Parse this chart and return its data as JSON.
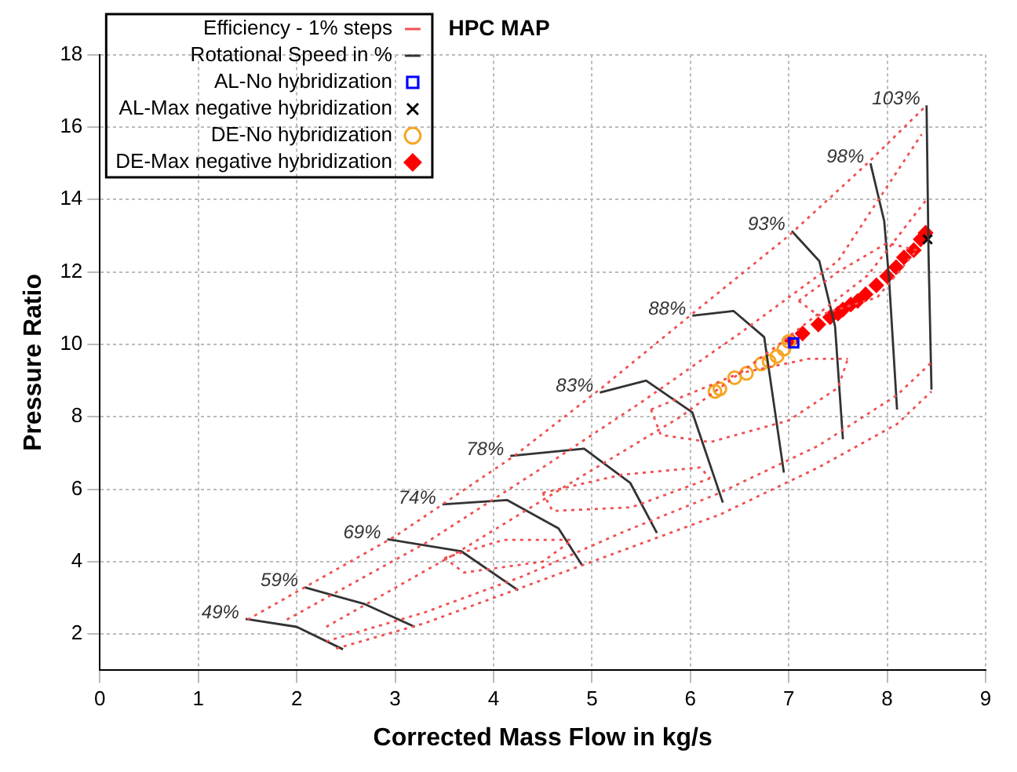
{
  "chart_data": {
    "type": "scatter",
    "title": "HPC MAP",
    "xlabel": "Corrected Mass Flow in kg/s",
    "ylabel": "Pressure Ratio",
    "xlim": [
      0,
      9
    ],
    "ylim": [
      1,
      18
    ],
    "xticks": [
      0,
      1,
      2,
      3,
      4,
      5,
      6,
      7,
      8,
      9
    ],
    "yticks": [
      2,
      4,
      6,
      8,
      10,
      12,
      14,
      16,
      18
    ],
    "grid": true,
    "legend": "top left",
    "series": [
      {
        "name": "Efficiency - 1% steps",
        "type": "line",
        "color": "#f05050",
        "line_style": "dotted",
        "marker": "none",
        "x": [
          1.5,
          3,
          4.2,
          5.1,
          6,
          7,
          7.8,
          8.4
        ],
        "values": [
          2.4,
          4.7,
          6.9,
          8.8,
          10.8,
          13,
          15,
          16.6
        ]
      },
      {
        "type": "line",
        "color": "#f05050",
        "line_style": "dotted",
        "marker": "none",
        "x": [
          1.9,
          3.3,
          4.5,
          5.5,
          6.5,
          7.5,
          8.35
        ],
        "values": [
          2.4,
          4.5,
          6.6,
          8.4,
          10.3,
          12.3,
          15.8
        ]
      },
      {
        "type": "line",
        "color": "#f05050",
        "line_style": "dotted",
        "marker": "none",
        "x": [
          2.3,
          3.6,
          4.8,
          5.9,
          6.9,
          7.8,
          8.4
        ],
        "values": [
          2.2,
          4.2,
          6.2,
          8,
          10,
          11.9,
          14
        ]
      },
      {
        "type": "line",
        "color": "#f05050",
        "line_style": "dotted",
        "marker": "none",
        "x": [
          2.4,
          3.3,
          4.3,
          5.3,
          6.3,
          7.3,
          8.1,
          8.45
        ],
        "values": [
          1.6,
          2.3,
          3.3,
          4.3,
          5.3,
          6.6,
          7.8,
          8.7
        ]
      },
      {
        "type": "line",
        "color": "#f05050",
        "line_style": "dotted",
        "marker": "none",
        "x": [
          2.3,
          3.3,
          4.3,
          5.3,
          6.3,
          7.3,
          8.1,
          8.45
        ],
        "values": [
          1.8,
          2.6,
          3.6,
          4.8,
          5.9,
          7.2,
          8.6,
          9.5
        ]
      },
      {
        "type": "line",
        "color": "#f05050",
        "line_style": "dotted",
        "marker": "none",
        "x": [
          5.6,
          6.5,
          7.2,
          7.6
        ],
        "values": [
          8.2,
          9.2,
          9.6,
          9.6
        ]
      },
      {
        "type": "line",
        "color": "#f05050",
        "line_style": "dotted",
        "marker": "none",
        "x": [
          5.6,
          5.7,
          6.2,
          7,
          7.5,
          7.6
        ],
        "values": [
          8.2,
          7.5,
          7.3,
          7.9,
          8.8,
          9.6
        ]
      },
      {
        "type": "line",
        "color": "#f05050",
        "line_style": "dotted",
        "marker": "none",
        "x": [
          4.5,
          5.3,
          6.1,
          6.2
        ],
        "values": [
          5.9,
          6.4,
          6.6,
          6.3
        ]
      },
      {
        "type": "line",
        "color": "#f05050",
        "line_style": "dotted",
        "marker": "none",
        "x": [
          4.5,
          4.6,
          5.4,
          6.2
        ],
        "values": [
          5.9,
          5.4,
          5.5,
          6.3
        ]
      },
      {
        "type": "line",
        "color": "#f05050",
        "line_style": "dotted",
        "marker": "none",
        "x": [
          3.5,
          4.1,
          4.8
        ],
        "values": [
          4.1,
          4.6,
          4.6
        ]
      },
      {
        "type": "line",
        "color": "#f05050",
        "line_style": "dotted",
        "marker": "none",
        "x": [
          3.5,
          3.7,
          4.5,
          4.8
        ],
        "values": [
          4.1,
          3.7,
          4,
          4.6
        ]
      },
      {
        "type": "line",
        "color": "#f05050",
        "line_style": "dotted",
        "marker": "none",
        "x": [
          7.1,
          7.5,
          8,
          8.3
        ],
        "values": [
          11.2,
          12,
          12.8,
          12.6
        ]
      },
      {
        "type": "line",
        "color": "#f05050",
        "line_style": "dotted",
        "marker": "none",
        "x": [
          7.1,
          7.3,
          7.9,
          8.3
        ],
        "values": [
          11.2,
          10.8,
          11.3,
          12.6
        ]
      },
      {
        "name": "Rotational Speed in %",
        "type": "line",
        "color": "#333333",
        "line_style": "solid",
        "marker": "none",
        "x": [
          1.48,
          2,
          2.47,
          null,
          2.08,
          2.69,
          3.2,
          null,
          2.92,
          3.67,
          4.25,
          null,
          3.48,
          4.14,
          4.66,
          4.9,
          null,
          4.17,
          4.92,
          5.39,
          5.66,
          null,
          5.08,
          5.55,
          6.02,
          6.33,
          null,
          6.02,
          6.44,
          6.75,
          6.95,
          null,
          7.03,
          7.31,
          7.47,
          7.55,
          null,
          7.83,
          7.97,
          8.02,
          8.1,
          null,
          8.4,
          8.42,
          8.45
        ],
        "values": [
          2.42,
          2.2,
          1.58,
          null,
          3.29,
          2.83,
          2.2,
          null,
          4.62,
          4.29,
          3.21,
          null,
          5.58,
          5.7,
          4.92,
          3.9,
          null,
          6.92,
          7.12,
          6.17,
          4.79,
          null,
          8.67,
          9,
          8.12,
          5.63,
          null,
          10.79,
          10.92,
          10.2,
          6.46,
          null,
          13.13,
          12.3,
          10.5,
          7.38,
          null,
          15,
          13.4,
          11.75,
          8.2,
          null,
          16.6,
          12.5,
          8.75
        ]
      },
      {
        "name": "AL-No hybridization",
        "type": "scatter",
        "color": "#0000ff",
        "marker": "square",
        "x": [
          7.05
        ],
        "values": [
          10.04
        ]
      },
      {
        "name": "AL-Max negative hybridization",
        "type": "scatter",
        "color": "#000000",
        "marker": "cross",
        "x": [
          8.41
        ],
        "values": [
          12.9
        ]
      },
      {
        "name": "DE-No hybridization",
        "type": "scatter",
        "color": "#f5a623",
        "marker": "circle",
        "x": [
          6.25,
          6.3,
          6.45,
          6.57,
          6.72,
          6.8,
          6.88,
          6.95,
          7
        ],
        "values": [
          8.7,
          8.77,
          9.08,
          9.2,
          9.46,
          9.53,
          9.67,
          9.87,
          10.08
        ]
      },
      {
        "name": "DE-Max negative hybridization",
        "type": "scatter",
        "color": "#ff0000",
        "marker": "diamond",
        "x": [
          7.03,
          7.14,
          7.3,
          7.42,
          7.5,
          7.55,
          7.63,
          7.7,
          7.78,
          7.89,
          8,
          8.09,
          8.17,
          8.27,
          8.34,
          8.39
        ],
        "values": [
          10.1,
          10.3,
          10.55,
          10.75,
          10.85,
          10.96,
          11.1,
          11.2,
          11.38,
          11.63,
          11.88,
          12.13,
          12.4,
          12.6,
          12.9,
          13.08
        ]
      }
    ],
    "annotations": [
      {
        "text": "49%",
        "x": 1.48,
        "y": 2.42
      },
      {
        "text": "59%",
        "x": 2.08,
        "y": 3.29
      },
      {
        "text": "69%",
        "x": 2.92,
        "y": 4.62
      },
      {
        "text": "74%",
        "x": 3.48,
        "y": 5.58
      },
      {
        "text": "78%",
        "x": 4.17,
        "y": 6.92
      },
      {
        "text": "83%",
        "x": 5.08,
        "y": 8.67
      },
      {
        "text": "88%",
        "x": 6.02,
        "y": 10.79
      },
      {
        "text": "93%",
        "x": 7.03,
        "y": 13.13
      },
      {
        "text": "98%",
        "x": 7.83,
        "y": 15
      },
      {
        "text": "103%",
        "x": 8.4,
        "y": 16.6
      }
    ]
  }
}
